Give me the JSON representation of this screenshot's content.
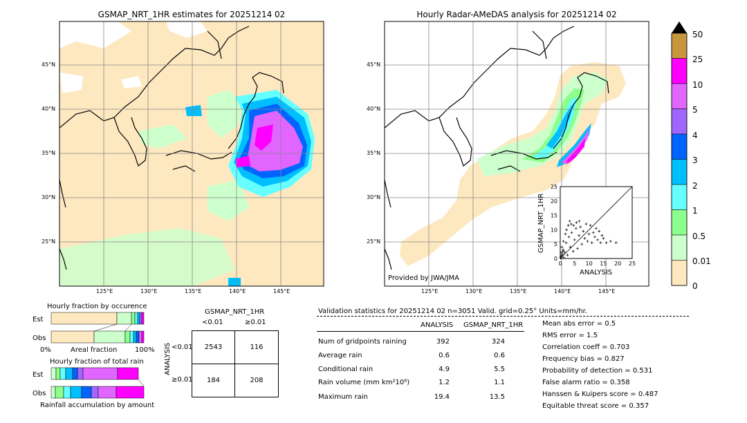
{
  "left_map": {
    "title": "GSMAP_NRT_1HR estimates for 20251214 02",
    "lat_labels": [
      "45°N",
      "40°N",
      "35°N",
      "30°N",
      "25°N"
    ],
    "lon_labels": [
      "125°E",
      "130°E",
      "135°E",
      "140°E",
      "145°E"
    ]
  },
  "right_map": {
    "title": "Hourly Radar-AMeDAS analysis for 20251214 02",
    "lat_labels": [
      "45°N",
      "40°N",
      "35°N",
      "30°N",
      "25°N"
    ],
    "lon_labels": [
      "125°E",
      "130°E",
      "135°E",
      "140°E",
      "145°E"
    ],
    "credit": "Provided by JWA/JMA"
  },
  "colorbar": {
    "labels": [
      "50",
      "25",
      "10",
      "5",
      "4",
      "3",
      "2",
      "1",
      "0.5",
      "0.01",
      "0"
    ],
    "colors": [
      "#c8963c",
      "#ff00ff",
      "#e066ff",
      "#a066ff",
      "#0064ff",
      "#00bfff",
      "#66ffff",
      "#8cff8c",
      "#ccffcc",
      "#fde8c0"
    ]
  },
  "chart_data": [
    {
      "type": "scatter",
      "xlabel": "ANALYSIS",
      "ylabel": "GSMAP_NRT_1HR",
      "xlim": [
        0,
        25
      ],
      "ylim": [
        0,
        25
      ],
      "ticks": [
        "0",
        "5",
        "10",
        "15",
        "20",
        "25"
      ],
      "points": [
        [
          0.2,
          0.1
        ],
        [
          0.5,
          0.8
        ],
        [
          0.8,
          1.5
        ],
        [
          1.0,
          3.0
        ],
        [
          1.2,
          0.4
        ],
        [
          1.5,
          2.2
        ],
        [
          2.0,
          5.5
        ],
        [
          2.5,
          1.2
        ],
        [
          3.0,
          7.5
        ],
        [
          3.5,
          4.0
        ],
        [
          4.0,
          9.0
        ],
        [
          4.5,
          2.5
        ],
        [
          5.0,
          6.5
        ],
        [
          5.5,
          10.5
        ],
        [
          6.0,
          3.5
        ],
        [
          6.5,
          8.0
        ],
        [
          7.0,
          11.0
        ],
        [
          7.5,
          5.0
        ],
        [
          8.0,
          9.5
        ],
        [
          8.5,
          7.0
        ],
        [
          9.0,
          12.0
        ],
        [
          9.5,
          6.0
        ],
        [
          10.0,
          8.5
        ],
        [
          10.5,
          11.5
        ],
        [
          11.0,
          5.5
        ],
        [
          11.5,
          9.0
        ],
        [
          12.0,
          7.5
        ],
        [
          12.5,
          10.5
        ],
        [
          13.0,
          6.5
        ],
        [
          13.5,
          9.5
        ],
        [
          14.0,
          5.5
        ],
        [
          14.5,
          8.0
        ],
        [
          15.0,
          7.0
        ],
        [
          16.0,
          5.5
        ],
        [
          17.5,
          6.0
        ],
        [
          19.4,
          5.5
        ],
        [
          0.3,
          2.0
        ],
        [
          0.6,
          4.0
        ],
        [
          1.1,
          6.0
        ],
        [
          1.8,
          8.5
        ],
        [
          2.2,
          10.0
        ],
        [
          2.8,
          11.5
        ],
        [
          3.3,
          13.0
        ],
        [
          3.8,
          12.0
        ],
        [
          4.6,
          11.5
        ],
        [
          5.6,
          12.5
        ],
        [
          6.6,
          13.0
        ],
        [
          0.1,
          0.5
        ],
        [
          0.4,
          1.0
        ],
        [
          0.9,
          2.5
        ]
      ]
    },
    {
      "type": "bar",
      "title": "Hourly fraction by occurence",
      "categories": [
        "Est",
        "Obs"
      ],
      "xlabel_left": "0%",
      "xlabel_mid": "Areal fraction",
      "xlabel_right": "100%"
    },
    {
      "type": "bar",
      "title": "Hourly fraction of total rain",
      "categories": [
        "Est",
        "Obs"
      ],
      "xlabel": "Rainfall accumulation by amount"
    },
    {
      "type": "table",
      "title": "GSMAP_NRT_1HR",
      "col_headers": [
        "<0.01",
        "≥0.01"
      ],
      "row_axis_label": "ANALYSIS",
      "row_headers": [
        "<0.01",
        "≥0.01"
      ],
      "cells": [
        [
          2543,
          116
        ],
        [
          184,
          208
        ]
      ]
    }
  ],
  "validation": {
    "header": "Validation statistics for 20251214 02  n=3051 Valid. grid=0.25° Units=mm/hr.",
    "col_analysis": "ANALYSIS",
    "col_gsmap": "GSMAP_NRT_1HR",
    "rows": [
      {
        "label": "Num of gridpoints raining",
        "analysis": "392",
        "gsmap": "324"
      },
      {
        "label": "Average rain",
        "analysis": "0.6",
        "gsmap": "0.6"
      },
      {
        "label": "Conditional rain",
        "analysis": "4.9",
        "gsmap": "5.5"
      },
      {
        "label": "Rain volume (mm km²10⁶)",
        "analysis": "1.2",
        "gsmap": "1.1"
      },
      {
        "label": "Maximum rain",
        "analysis": "19.4",
        "gsmap": "13.5"
      }
    ],
    "scores": [
      "Mean abs error =    0.5",
      "RMS error =    1.5",
      "Correlation coeff =  0.703",
      "Frequency bias =  0.827",
      "Probability of detection =  0.531",
      "False alarm ratio =  0.358",
      "Hanssen & Kuipers score =  0.487",
      "Equitable threat score =  0.357"
    ]
  }
}
